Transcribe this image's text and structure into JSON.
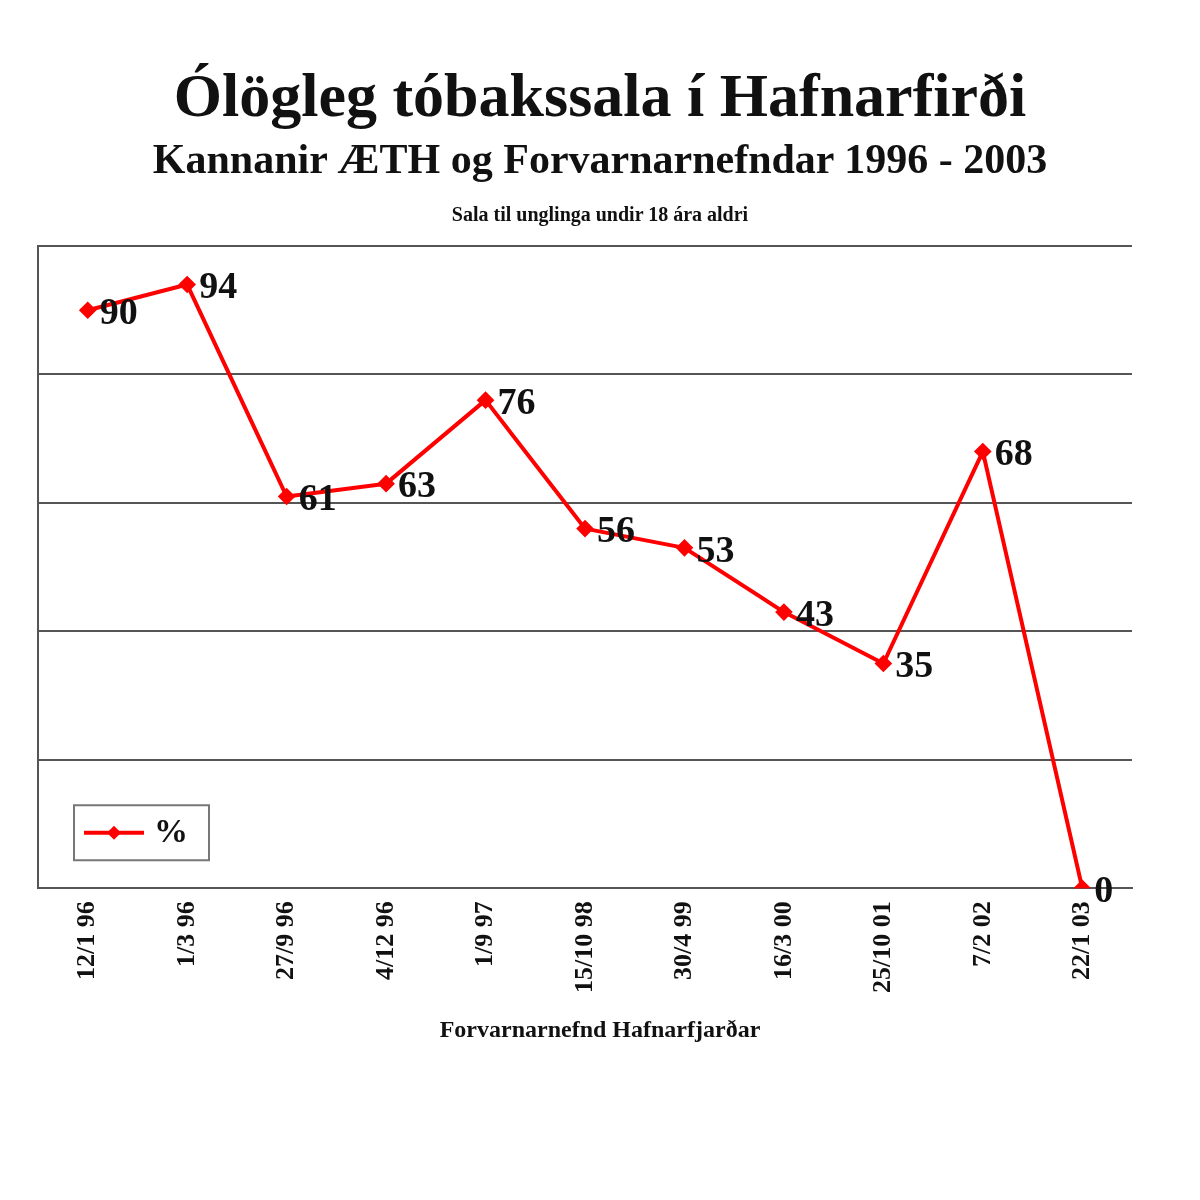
{
  "chart_data": {
    "type": "line",
    "title": "Ólögleg tóbakssala í Hafnarfirði",
    "subtitle": "Kannanir ÆTH og Forvarnarnefndar  1996 - 2003",
    "annotations": [
      "Sala til unglinga undir 18 ára aldri",
      "Forvarnarnefnd Hafnarfjarðar"
    ],
    "categories": [
      "12/1 96",
      "1/3 96",
      "27/9 96",
      "4/12 96",
      "1/9 97",
      "15/10 98",
      "30/4 99",
      "16/3 00",
      "25/10 01",
      "7/2 02",
      "22/1 03"
    ],
    "series": [
      {
        "name": "%",
        "color": "#ff0000",
        "values": [
          90,
          94,
          61,
          63,
          76,
          56,
          53,
          43,
          35,
          68,
          0
        ]
      }
    ],
    "ylim": [
      0,
      100
    ],
    "yticks": [
      {
        "value": 0,
        "label": null
      },
      {
        "value": 20,
        "label": null
      },
      {
        "value": 40,
        "label": null
      },
      {
        "value": 60,
        "label": null
      },
      {
        "value": 80,
        "label": null
      },
      {
        "value": 100,
        "label": null
      }
    ],
    "tick_labels": "x",
    "grid": "y",
    "legend": "bottom left",
    "marker": "diamond",
    "line_style": "solid",
    "data_labels": true
  }
}
